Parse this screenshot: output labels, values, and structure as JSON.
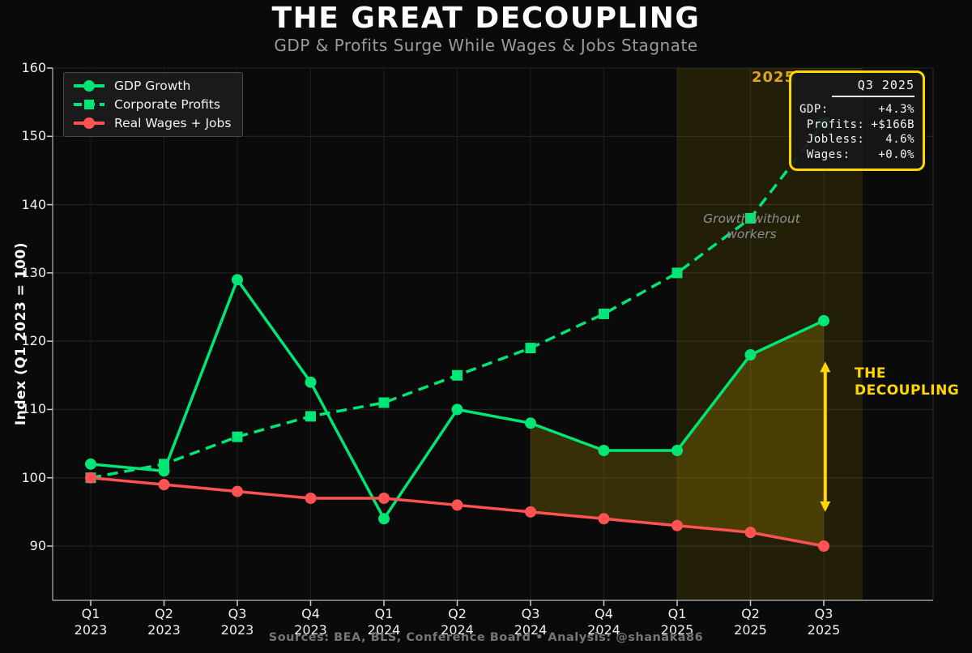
{
  "title": "THE GREAT DECOUPLING",
  "subtitle": "GDP & Profits Surge While Wages & Jobs Stagnate",
  "footer": "Sources: BEA, BLS, Conference Board  •  Analysis: @shanaka86",
  "colors": {
    "background": "#0a0a0a",
    "green": "#00e676",
    "red": "#ff5252",
    "gold": "#FFD700",
    "goldenrod": "#DAA520",
    "grid_h": "#262626",
    "grid_v": "#1d1d1d",
    "spine": "#9a9a9a",
    "tick": "#cfcfcf",
    "text": "#f0f0f0",
    "muted": "#8f8f8f"
  },
  "annotations": {
    "year_label": "2025",
    "growth_note_line1": "Growth without",
    "growth_note_line2": "workers",
    "decoupling_line1": "THE",
    "decoupling_line2": "DECOUPLING",
    "stats_box": {
      "header": "Q3 2025",
      "rows": [
        {
          "label": "GDP:",
          "value": "+4.3%"
        },
        {
          "label": " Profits:",
          "value": "+$166B"
        },
        {
          "label": " Jobless:",
          "value": "4.6%"
        },
        {
          "label": " Wages:",
          "value": "+0.0%"
        }
      ]
    }
  },
  "chart_data": {
    "type": "line",
    "title": "THE GREAT DECOUPLING",
    "xlabel": "",
    "ylabel": "Index (Q1 2023 = 100)",
    "ylim": [
      82,
      160
    ],
    "yticks": [
      90,
      100,
      110,
      120,
      130,
      140,
      150,
      160
    ],
    "grid": true,
    "legend_position": "upper left",
    "categories": [
      "Q1 2023",
      "Q2 2023",
      "Q3 2023",
      "Q4 2023",
      "Q1 2024",
      "Q2 2024",
      "Q3 2024",
      "Q4 2024",
      "Q1 2025",
      "Q2 2025",
      "Q3 2025"
    ],
    "series": [
      {
        "name": "Corporate Profits",
        "color": "#00e676",
        "style": "dashed",
        "marker": "square",
        "values": [
          100,
          102,
          106,
          109,
          111,
          115,
          119,
          124,
          130,
          138,
          152
        ]
      },
      {
        "name": "GDP Growth",
        "color": "#00e676",
        "style": "solid",
        "marker": "circle",
        "values": [
          102,
          101,
          129,
          114,
          94,
          110,
          108,
          104,
          104,
          118,
          123
        ]
      },
      {
        "name": "Real Wages + Jobs",
        "color": "#ff5252",
        "style": "solid",
        "marker": "circle",
        "values": [
          100,
          99,
          98,
          97,
          97,
          96,
          95,
          94,
          93,
          92,
          90
        ]
      }
    ],
    "legend_order": [
      "GDP Growth",
      "Corporate Profits",
      "Real Wages + Jobs"
    ],
    "highlight_span": {
      "from_index": 8,
      "to_index": 10.53,
      "color": "#FFD700",
      "alpha": 0.1
    },
    "fill_between": {
      "from_index": 6,
      "to_index": 10,
      "upper": "GDP Growth",
      "lower": "Real Wages + Jobs",
      "color": "#FFD700",
      "alpha": 0.18
    },
    "arrow": {
      "x_index": 10.02,
      "y_from": 95,
      "y_to": 117,
      "color": "#FFD700"
    }
  }
}
